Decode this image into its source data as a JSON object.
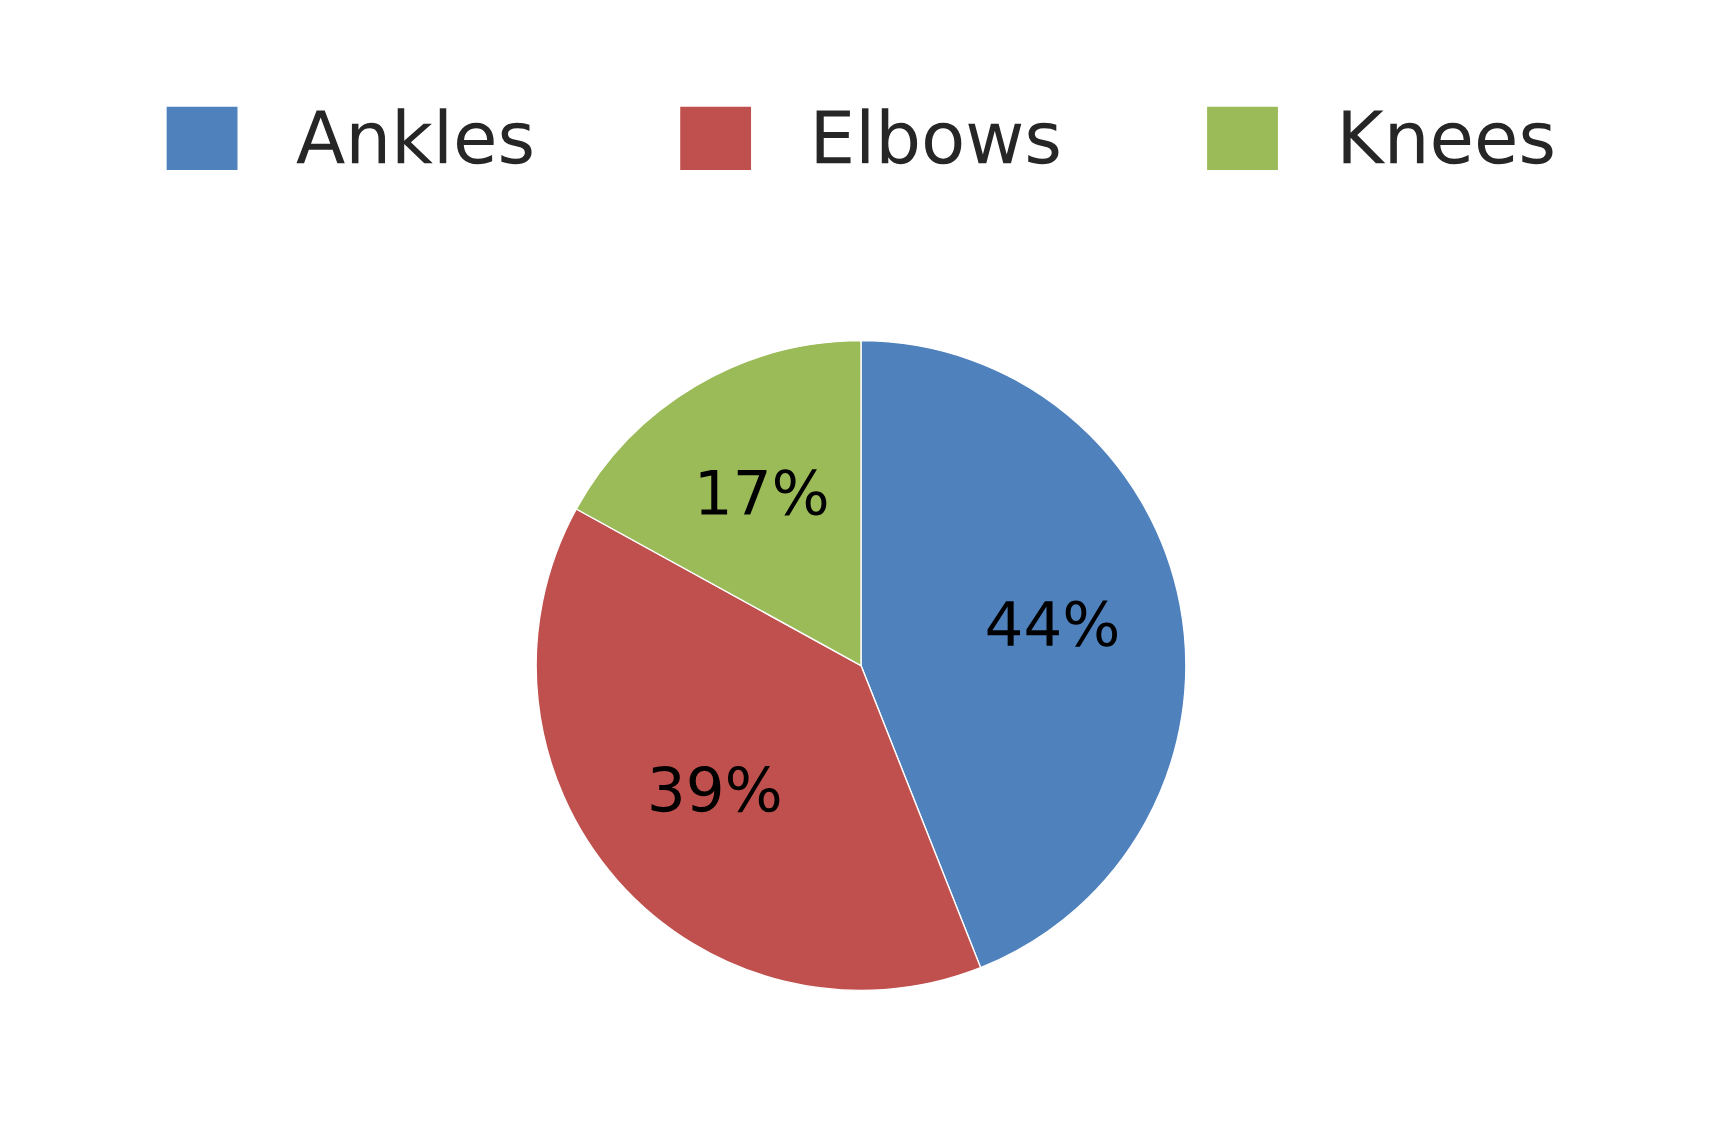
{
  "chart_data": {
    "type": "pie",
    "categories": [
      "Ankles",
      "Elbows",
      "Knees"
    ],
    "values": [
      44,
      39,
      17
    ],
    "colors": [
      "#4f81bd",
      "#c0504d",
      "#9bbb59"
    ],
    "value_labels": [
      "44%",
      "39%",
      "17%"
    ],
    "legend": "top"
  }
}
